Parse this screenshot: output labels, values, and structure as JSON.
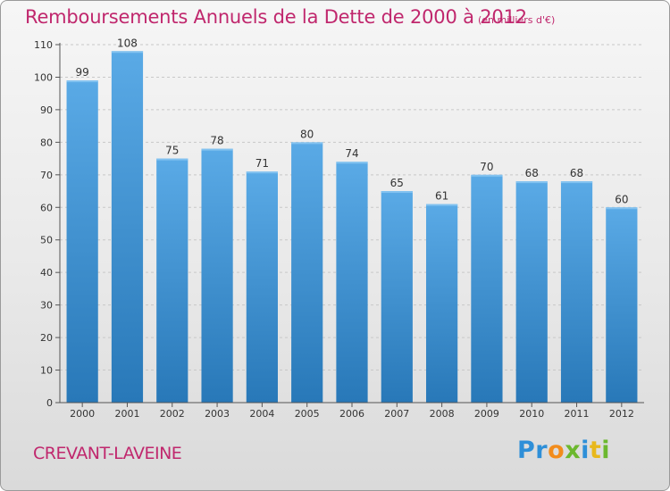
{
  "chart_data": {
    "type": "bar",
    "title": "Remboursements Annuels de la Dette de 2000 à 2012",
    "subtitle": "(en milliers d'€)",
    "categories": [
      "2000",
      "2001",
      "2002",
      "2003",
      "2004",
      "2005",
      "2006",
      "2007",
      "2008",
      "2009",
      "2010",
      "2011",
      "2012"
    ],
    "values": [
      99,
      108,
      75,
      78,
      71,
      80,
      74,
      65,
      61,
      70,
      68,
      68,
      60
    ],
    "ylim": [
      0,
      110
    ],
    "yticks": [
      0,
      10,
      20,
      30,
      40,
      50,
      60,
      70,
      80,
      90,
      100,
      110
    ],
    "grid": "horizontal dashed",
    "legend": "none",
    "bar_color_top": "#5aaae6",
    "bar_color_bottom": "#2878b8"
  },
  "footer": {
    "commune": "CREVANT-LAVEINE",
    "logo_text": "Proxiti",
    "logo_letters": [
      {
        "char": "P",
        "color": "#2e8fd8"
      },
      {
        "char": "r",
        "color": "#2e8fd8"
      },
      {
        "char": "o",
        "color": "#f28c1c"
      },
      {
        "char": "x",
        "color": "#6cb82e"
      },
      {
        "char": "i",
        "color": "#2e8fd8"
      },
      {
        "char": "t",
        "color": "#e8b81c"
      },
      {
        "char": "i",
        "color": "#6cb82e"
      }
    ]
  },
  "colors": {
    "accent": "#c0276d",
    "grid": "#c8c8c8",
    "axis": "#555555"
  }
}
